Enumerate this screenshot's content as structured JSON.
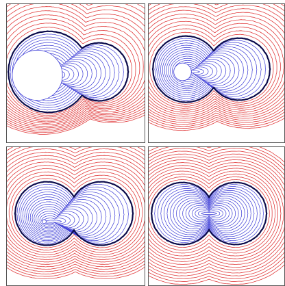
{
  "colors": {
    "outer_contours": "#e0393a",
    "inner_contours": "#3a3ad6",
    "boundary_contour": "#0a0a4a",
    "hole": "#ffffff",
    "frame": "#555555"
  },
  "panels": [
    {
      "name": "top-left",
      "hole": "large",
      "asymmetry": 1.0
    },
    {
      "name": "top-right",
      "hole": "medium",
      "asymmetry": 0.65
    },
    {
      "name": "bottom-left",
      "hole": "small",
      "asymmetry": 0.35
    },
    {
      "name": "bottom-right",
      "hole": "none",
      "asymmetry": 0.0
    }
  ]
}
